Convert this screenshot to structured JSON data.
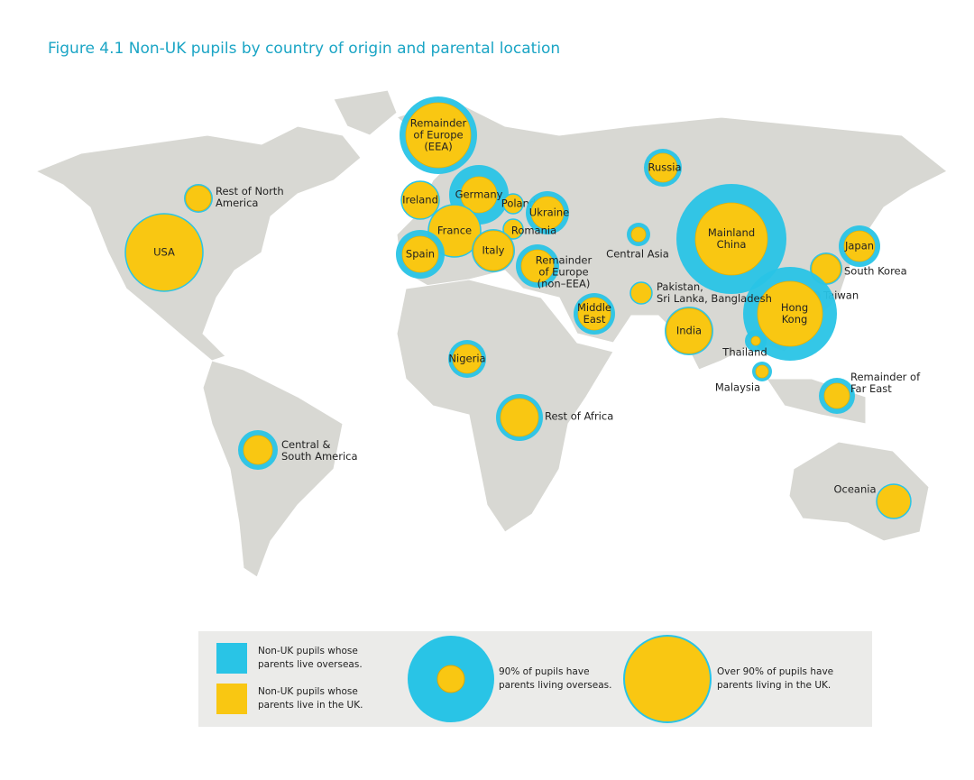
{
  "title": "Figure 4.1 Non-UK pupils by country of origin and parental location",
  "regions": [
    {
      "label": [
        "Remainder",
        "of Europe",
        "(EEA)"
      ]
    },
    {
      "label": [
        "Rest of North",
        "America"
      ]
    },
    {
      "label": [
        "USA"
      ]
    },
    {
      "label": [
        "Ireland"
      ]
    },
    {
      "label": [
        "Germany"
      ]
    },
    {
      "label": [
        "Poland"
      ]
    },
    {
      "label": [
        "Ukraine"
      ]
    },
    {
      "label": [
        "France"
      ]
    },
    {
      "label": [
        "Romania"
      ]
    },
    {
      "label": [
        "Spain"
      ]
    },
    {
      "label": [
        "Italy"
      ]
    },
    {
      "label": [
        "Remainder",
        "of Europe",
        "(non–EEA)"
      ]
    },
    {
      "label": [
        "Russia"
      ]
    },
    {
      "label": [
        "Central Asia"
      ]
    },
    {
      "label": [
        "Mainland",
        "China"
      ]
    },
    {
      "label": [
        "Japan"
      ]
    },
    {
      "label": [
        "South Korea"
      ]
    },
    {
      "label": [
        "Taiwan"
      ]
    },
    {
      "label": [
        "Hong",
        "Kong"
      ]
    },
    {
      "label": [
        "Pakistan,",
        "Sri Lanka, Bangladesh"
      ]
    },
    {
      "label": [
        "Middle",
        "East"
      ]
    },
    {
      "label": [
        "India"
      ]
    },
    {
      "label": [
        "Thailand"
      ]
    },
    {
      "label": [
        "Malaysia"
      ]
    },
    {
      "label": [
        "Remainder of",
        "Far East"
      ]
    },
    {
      "label": [
        "Nigeria"
      ]
    },
    {
      "label": [
        "Rest of Africa"
      ]
    },
    {
      "label": [
        "Central &",
        "South America"
      ]
    },
    {
      "label": [
        "Oceania"
      ]
    }
  ],
  "legend": {
    "overseas": [
      "Non-UK pupils whose",
      "parents live overseas."
    ],
    "uk": [
      "Non-UK pupils whose",
      "parents live in the UK."
    ],
    "example_overseas": [
      "90% of pupils have",
      "parents living overseas."
    ],
    "example_uk": [
      "Over 90% of pupils have",
      "parents living in the UK."
    ]
  }
}
